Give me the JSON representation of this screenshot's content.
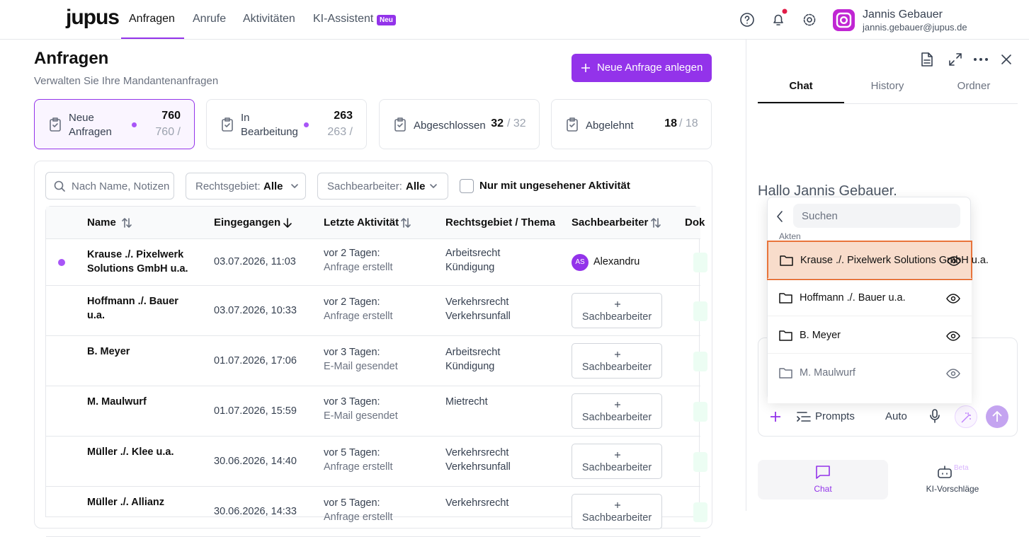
{
  "nav": {
    "logo": "jupus",
    "items": [
      "Anfragen",
      "Anrufe",
      "Aktivitäten",
      "KI-Assistent"
    ],
    "badge": "Neu",
    "user_name": "Jannis Gebauer",
    "user_email": "jannis.gebauer@jupus.de"
  },
  "header": {
    "title": "Anfragen",
    "subtitle": "Verwalten Sie Ihre Mandantenanfragen",
    "button": "Neue Anfrage anlegen"
  },
  "stats": [
    {
      "label": "Neue Anfragen",
      "count": "760",
      "total": "/ 760",
      "dot": true
    },
    {
      "label": "In Bearbeitung",
      "count": "263",
      "total": "/ 263",
      "dot": true
    },
    {
      "label": "Abgeschlossen",
      "count": "32",
      "total": "/ 32",
      "dot": false
    },
    {
      "label": "Abgelehnt",
      "count": "18",
      "total": "/ 18",
      "dot": false
    }
  ],
  "filters": {
    "search_placeholder": "Nach Name, Notizen",
    "rechtsgebiet_label": "Rechtsgebiet:",
    "rechtsgebiet_value": "Alle",
    "sachbearbeiter_label": "Sachbearbeiter:",
    "sachbearbeiter_value": "Alle",
    "checkbox": "Nur mit ungesehener Aktivität"
  },
  "table": {
    "columns": [
      "Name",
      "Eingegangen",
      "Letzte Aktivität",
      "Rechtsgebiet / Thema",
      "Sachbearbeiter",
      "Dok"
    ],
    "assign_label": "Sachbearbeiter",
    "rows": [
      {
        "unseen": true,
        "name": "Krause ./. Pixelwerk Solutions GmbH u.a.",
        "received": "03.07.2026, 11:03",
        "when": "vor 2 Tagen:",
        "what": "Anfrage erstellt",
        "topic": [
          "Arbeitsrecht",
          "Kündigung"
        ],
        "assignee": {
          "initials": "AS",
          "name": "Alexandru"
        }
      },
      {
        "unseen": false,
        "name": "Hoffmann ./. Bauer u.a.",
        "received": "03.07.2026, 10:33",
        "when": "vor 2 Tagen:",
        "what": "Anfrage erstellt",
        "topic": [
          "Verkehrsrecht",
          "Verkehrsunfall"
        ]
      },
      {
        "unseen": false,
        "name": "B. Meyer",
        "received": "01.07.2026, 17:06",
        "when": "vor 3 Tagen:",
        "what": "E-Mail gesendet",
        "topic": [
          "Arbeitsrecht",
          "Kündigung"
        ]
      },
      {
        "unseen": false,
        "name": "M. Maulwurf",
        "received": "01.07.2026, 15:59",
        "when": "vor 3 Tagen:",
        "what": "E-Mail gesendet",
        "topic": [
          "Mietrecht"
        ]
      },
      {
        "unseen": false,
        "name": "Müller ./. Klee u.a.",
        "received": "30.06.2026, 14:40",
        "when": "vor 5 Tagen:",
        "what": "Anfrage erstellt",
        "topic": [
          "Verkehrsrecht",
          "Verkehrsunfall"
        ]
      },
      {
        "unseen": false,
        "name": "Müller ./. Allianz",
        "received": "30.06.2026, 14:33",
        "when": "vor 5 Tagen:",
        "what": "Anfrage erstellt",
        "topic": [
          "Verkehrsrecht"
        ]
      }
    ]
  },
  "panel": {
    "tabs": [
      "Chat",
      "History",
      "Ordner"
    ],
    "greeting": "Hallo Jannis Gebauer.",
    "dropdown": {
      "search_placeholder": "Suchen",
      "section": "Akten",
      "items": [
        "Krause ./. Pixelwerk Solutions GmbH u.a.",
        "Hoffmann ./. Bauer u.a.",
        "B. Meyer",
        "M. Maulwurf"
      ]
    },
    "input": {
      "prompts": "Prompts",
      "mode": "Auto"
    },
    "bottom": {
      "chat": "Chat",
      "suggestions": "KI-Vorschläge",
      "beta": "Beta"
    }
  }
}
